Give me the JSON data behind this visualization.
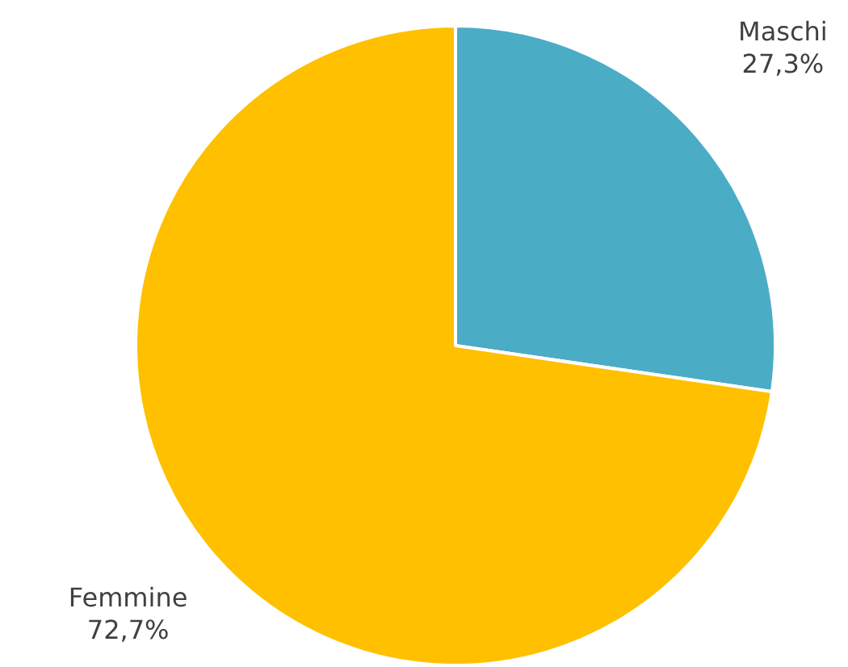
{
  "chart_data": {
    "type": "pie",
    "categories": [
      "Maschi",
      "Femmine"
    ],
    "values": [
      27.3,
      72.7
    ],
    "colors": [
      "#4bacc6",
      "#ffc000"
    ],
    "value_labels": [
      "27,3%",
      "72,7%"
    ],
    "legend": false
  }
}
